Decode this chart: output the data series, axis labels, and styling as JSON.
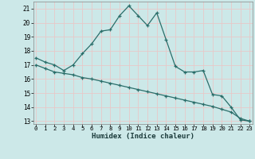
{
  "xlabel": "Humidex (Indice chaleur)",
  "ylabel": "",
  "bg_color": "#cce8e8",
  "grid_color": "#e8c8c8",
  "line_color": "#2a6e6a",
  "x_values": [
    0,
    1,
    2,
    3,
    4,
    5,
    6,
    7,
    8,
    9,
    10,
    11,
    12,
    13,
    14,
    15,
    16,
    17,
    18,
    19,
    20,
    21,
    22,
    23
  ],
  "y_humidex": [
    17.5,
    17.2,
    17.0,
    16.6,
    17.0,
    17.8,
    18.5,
    19.4,
    19.5,
    20.5,
    21.2,
    20.5,
    19.8,
    20.7,
    18.8,
    16.9,
    16.5,
    16.5,
    16.6,
    14.9,
    14.8,
    14.0,
    13.1,
    13.0
  ],
  "y_linear": [
    17.0,
    16.75,
    16.5,
    16.4,
    16.3,
    16.1,
    16.0,
    15.85,
    15.7,
    15.55,
    15.4,
    15.25,
    15.1,
    14.95,
    14.8,
    14.65,
    14.5,
    14.35,
    14.2,
    14.05,
    13.85,
    13.65,
    13.2,
    13.0
  ],
  "ylim_min": 12.8,
  "ylim_max": 21.5,
  "yticks": [
    13,
    14,
    15,
    16,
    17,
    18,
    19,
    20,
    21
  ],
  "xlim_min": -0.3,
  "xlim_max": 23.3,
  "xticks": [
    0,
    1,
    2,
    3,
    4,
    5,
    6,
    7,
    8,
    9,
    10,
    11,
    12,
    13,
    14,
    15,
    16,
    17,
    18,
    19,
    20,
    21,
    22,
    23
  ]
}
